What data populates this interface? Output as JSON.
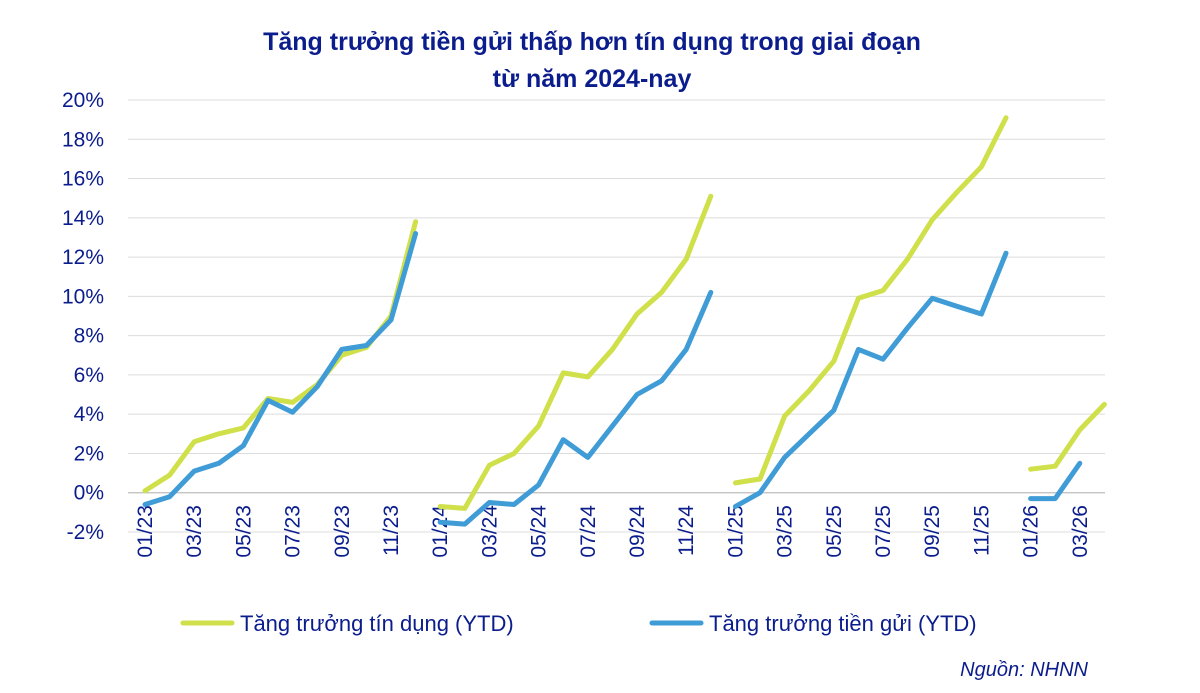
{
  "chart_data": {
    "type": "line",
    "title_lines": [
      "Tăng trưởng tiền gửi thấp hơn tín dụng trong giai đoạn",
      "từ năm 2024-nay"
    ],
    "ylim": [
      -2,
      20
    ],
    "yticks": [
      "-2%",
      "0%",
      "2%",
      "4%",
      "6%",
      "8%",
      "10%",
      "12%",
      "14%",
      "16%",
      "18%",
      "20%"
    ],
    "ytick_values": [
      -2,
      0,
      2,
      4,
      6,
      8,
      10,
      12,
      14,
      16,
      18,
      20
    ],
    "categories": [
      "01/23",
      "02/23",
      "03/23",
      "04/23",
      "05/23",
      "06/23",
      "07/23",
      "08/23",
      "09/23",
      "10/23",
      "11/23",
      "12/23",
      "01/24",
      "02/24",
      "03/24",
      "04/24",
      "05/24",
      "06/24",
      "07/24",
      "08/24",
      "09/24",
      "10/24",
      "11/24",
      "12/24",
      "01/25",
      "02/25",
      "03/25",
      "04/25",
      "05/25",
      "06/25",
      "07/25",
      "08/25",
      "09/25",
      "10/25",
      "11/25",
      "12/25",
      "01/26",
      "02/26",
      "03/26",
      "04/26"
    ],
    "xtick_labels": [
      "01/23",
      "03/23",
      "05/23",
      "07/23",
      "09/23",
      "11/23",
      "01/24",
      "03/24",
      "05/24",
      "07/24",
      "09/24",
      "11/24",
      "01/25",
      "03/25",
      "05/25",
      "07/25",
      "09/25",
      "11/25",
      "01/26",
      "03/26"
    ],
    "grid": true,
    "legend_position": "bottom",
    "series": [
      {
        "name": "Tăng trưởng tín dụng (YTD)",
        "color": "#cfe04a",
        "segments": [
          [
            0.1,
            0.9,
            2.6,
            3.0,
            3.3,
            4.8,
            4.6,
            5.5,
            7.0,
            7.4,
            9.0,
            13.8
          ],
          [
            -0.7,
            -0.8,
            1.4,
            2.0,
            3.4,
            6.1,
            5.9,
            7.3,
            9.1,
            10.2,
            11.9,
            15.1
          ],
          [
            0.5,
            0.7,
            3.9,
            5.2,
            6.7,
            9.9,
            10.3,
            11.9,
            13.9,
            15.3,
            16.6,
            19.1
          ],
          [
            1.2,
            1.35,
            3.2,
            4.5
          ]
        ]
      },
      {
        "name": "Tăng trưởng tiền gửi (YTD)",
        "color": "#3f9cd6",
        "segments": [
          [
            -0.6,
            -0.2,
            1.1,
            1.5,
            2.4,
            4.7,
            4.1,
            5.4,
            7.3,
            7.5,
            8.8,
            13.2
          ],
          [
            -1.5,
            -1.6,
            -0.5,
            -0.6,
            0.4,
            2.7,
            1.8,
            3.4,
            5.0,
            5.7,
            7.3,
            10.2
          ],
          [
            -0.7,
            0.0,
            1.8,
            3.0,
            4.2,
            7.3,
            6.8,
            8.4,
            9.9,
            9.5,
            9.1,
            12.2
          ],
          [
            -0.3,
            -0.3,
            1.5
          ]
        ]
      }
    ],
    "legend": [
      {
        "label": "Tăng trưởng tín dụng (YTD)",
        "color": "#cfe04a"
      },
      {
        "label": "Tăng trưởng tiền gửi (YTD)",
        "color": "#3f9cd6"
      }
    ],
    "source": "Nguồn:  NHNN"
  }
}
